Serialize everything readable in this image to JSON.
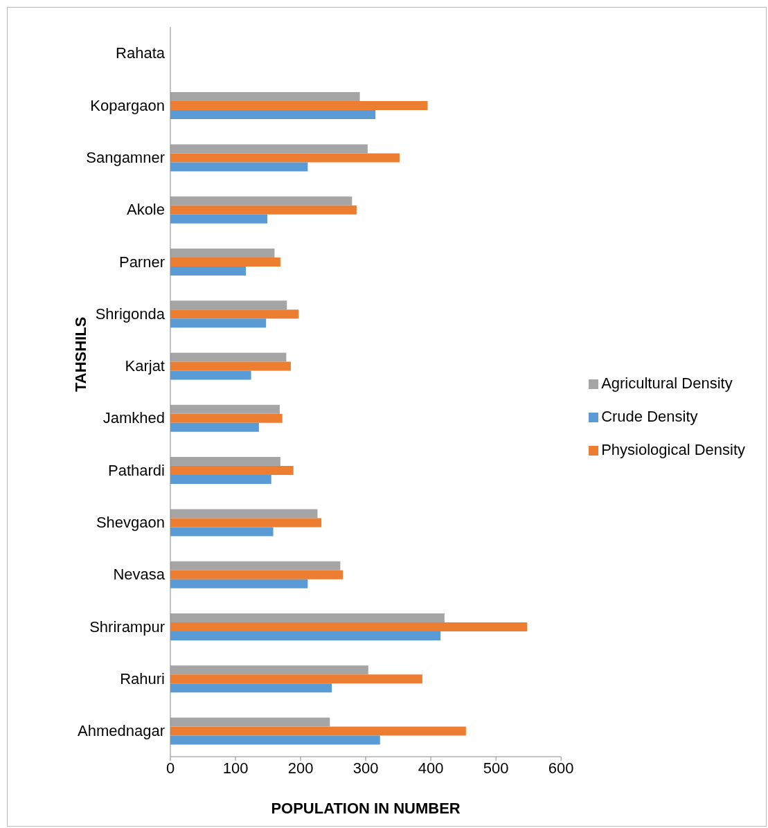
{
  "chart_data": {
    "type": "bar",
    "orientation": "horizontal",
    "xlabel": "POPULATION IN NUMBER",
    "ylabel": "TAHSHILS",
    "categories": [
      "Rahata",
      "Kopargaon",
      "Sangamner",
      "Akole",
      "Parner",
      "Shrigonda",
      "Karjat",
      "Jamkhed",
      "Pathardi",
      "Shevgaon",
      "Nevasa",
      "Shrirampur",
      "Rahuri",
      "Ahmednagar"
    ],
    "series": [
      {
        "name": "Agricultural Density",
        "color": "#a5a5a5",
        "values": [
          null,
          291,
          303,
          279,
          160,
          179,
          178,
          168,
          169,
          226,
          261,
          421,
          304,
          245
        ]
      },
      {
        "name": "Physiological Density",
        "color": "#ed7d31",
        "values": [
          null,
          395,
          352,
          286,
          169,
          197,
          185,
          172,
          189,
          232,
          265,
          548,
          387,
          454
        ]
      },
      {
        "name": "Crude Density",
        "color": "#5b9bd5",
        "values": [
          null,
          315,
          211,
          149,
          116,
          147,
          124,
          136,
          155,
          158,
          211,
          415,
          248,
          322
        ]
      }
    ],
    "xlim": [
      0,
      600
    ],
    "xticks": [
      0,
      100,
      200,
      300,
      400,
      500,
      600
    ],
    "grid": false,
    "legend": "right"
  }
}
